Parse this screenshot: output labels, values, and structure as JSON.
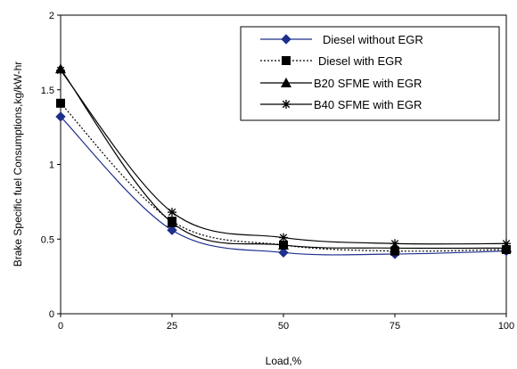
{
  "chart_data": {
    "type": "line",
    "title": "",
    "xlabel": "Load,%",
    "ylabel": "Brake Specific fuel Consumptions,kg/kW-hr",
    "x": [
      0,
      25,
      50,
      75,
      100
    ],
    "x_tick_labels": [
      "0",
      "25",
      "50",
      "75",
      "100"
    ],
    "y_tick_labels": [
      "0",
      "0.5",
      "1",
      "1.5",
      "2"
    ],
    "xlim": [
      0,
      100
    ],
    "ylim": [
      0,
      2
    ],
    "grid": false,
    "legend_position": "top-right",
    "series": [
      {
        "name": "Diesel without EGR",
        "values": [
          1.32,
          0.56,
          0.41,
          0.4,
          0.42
        ],
        "marker": "diamond",
        "dash": "solid",
        "color": "#1f2f8c"
      },
      {
        "name": "Diesel with EGR",
        "values": [
          1.41,
          0.62,
          0.46,
          0.42,
          0.43
        ],
        "marker": "square",
        "dash": "dotted",
        "color": "#000000"
      },
      {
        "name": "B20 SFME  with EGR",
        "values": [
          1.64,
          0.61,
          0.46,
          0.44,
          0.44
        ],
        "marker": "triangle",
        "dash": "solid",
        "color": "#000000"
      },
      {
        "name": "B40 SFME  with EGR",
        "values": [
          1.63,
          0.68,
          0.51,
          0.47,
          0.47
        ],
        "marker": "star",
        "dash": "solid",
        "color": "#000000"
      }
    ]
  }
}
